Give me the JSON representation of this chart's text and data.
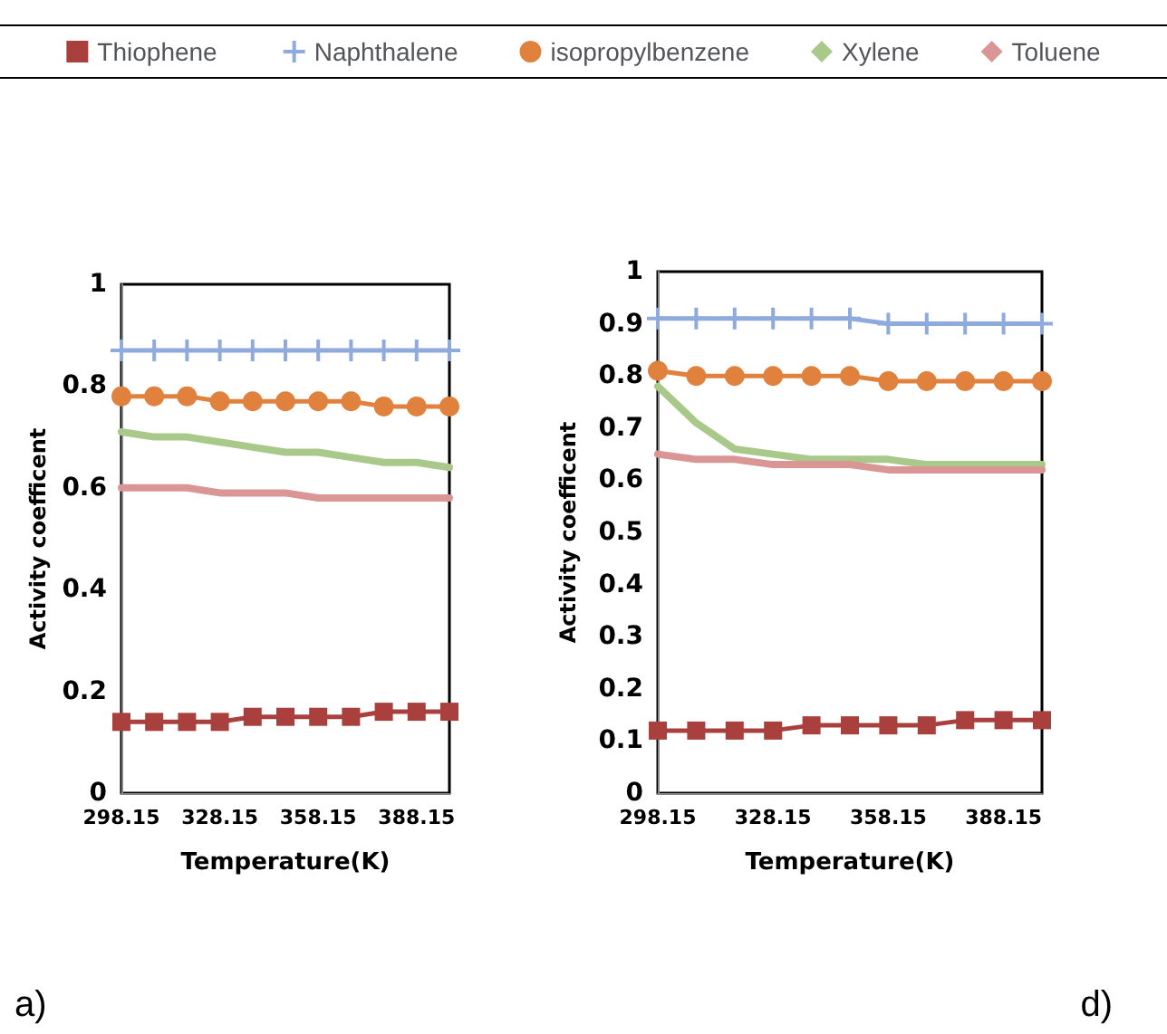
{
  "chart_data": [
    {
      "type": "line",
      "xlabel": "Temperature(K)",
      "ylabel": "Activity coefficent",
      "annotations": [
        "a)"
      ],
      "categories": [
        "298.15",
        null,
        null,
        "328.15",
        null,
        null,
        "358.15",
        null,
        null,
        "388.15",
        null
      ],
      "ylim": [
        0,
        1
      ],
      "yticks": [
        0,
        0.2,
        0.4,
        0.6,
        0.8,
        1
      ],
      "grid": false,
      "legend": "top",
      "series": [
        {
          "name": "Thiophene",
          "color": "#a9403e",
          "marker": "square",
          "values": [
            0.14,
            0.14,
            0.14,
            0.14,
            0.15,
            0.15,
            0.15,
            0.15,
            0.16,
            0.16,
            0.16
          ]
        },
        {
          "name": "Naphthalene",
          "color": "#8faadc",
          "marker": "cross",
          "values": [
            0.87,
            0.87,
            0.87,
            0.87,
            0.87,
            0.87,
            0.87,
            0.87,
            0.87,
            0.87,
            0.87
          ]
        },
        {
          "name": "isopropylbenzene",
          "color": "#e0823d",
          "marker": "circle",
          "values": [
            0.78,
            0.78,
            0.78,
            0.77,
            0.77,
            0.77,
            0.77,
            0.77,
            0.76,
            0.76,
            0.76
          ]
        },
        {
          "name": "Xylene",
          "color": "#a9c98a",
          "marker": "none",
          "values": [
            0.71,
            0.7,
            0.7,
            0.69,
            0.68,
            0.67,
            0.67,
            0.66,
            0.65,
            0.65,
            0.64
          ]
        },
        {
          "name": "Toluene",
          "color": "#d99694",
          "marker": "none",
          "values": [
            0.6,
            0.6,
            0.6,
            0.59,
            0.59,
            0.59,
            0.58,
            0.58,
            0.58,
            0.58,
            0.58
          ]
        }
      ]
    },
    {
      "type": "line",
      "xlabel": "Temperature(K)",
      "ylabel": "Activity coefficent",
      "annotations": [
        "d)"
      ],
      "categories": [
        "298.15",
        null,
        null,
        "328.15",
        null,
        null,
        "358.15",
        null,
        null,
        "388.15",
        null
      ],
      "ylim": [
        0,
        1
      ],
      "yticks": [
        0,
        0.1,
        0.2,
        0.3,
        0.4,
        0.5,
        0.6,
        0.7,
        0.8,
        0.9,
        1
      ],
      "grid": false,
      "legend": false,
      "series": [
        {
          "color": "#a9403e",
          "marker": "square",
          "values": [
            0.12,
            0.12,
            0.12,
            0.12,
            0.13,
            0.13,
            0.13,
            0.13,
            0.14,
            0.14,
            0.14
          ]
        },
        {
          "color": "#8faadc",
          "marker": "cross",
          "values": [
            0.91,
            0.91,
            0.91,
            0.91,
            0.91,
            0.91,
            0.9,
            0.9,
            0.9,
            0.9,
            0.9
          ]
        },
        {
          "color": "#e0823d",
          "marker": "circle",
          "values": [
            0.81,
            0.8,
            0.8,
            0.8,
            0.8,
            0.8,
            0.79,
            0.79,
            0.79,
            0.79,
            0.79
          ]
        },
        {
          "color": "#a9c98a",
          "marker": "none",
          "values": [
            0.78,
            0.71,
            0.66,
            0.65,
            0.64,
            0.64,
            0.64,
            0.63,
            0.63,
            0.63,
            0.63
          ]
        },
        {
          "color": "#d99694",
          "marker": "none",
          "values": [
            0.65,
            0.64,
            0.64,
            0.63,
            0.63,
            0.63,
            0.62,
            0.62,
            0.62,
            0.62,
            0.62
          ]
        }
      ]
    }
  ]
}
